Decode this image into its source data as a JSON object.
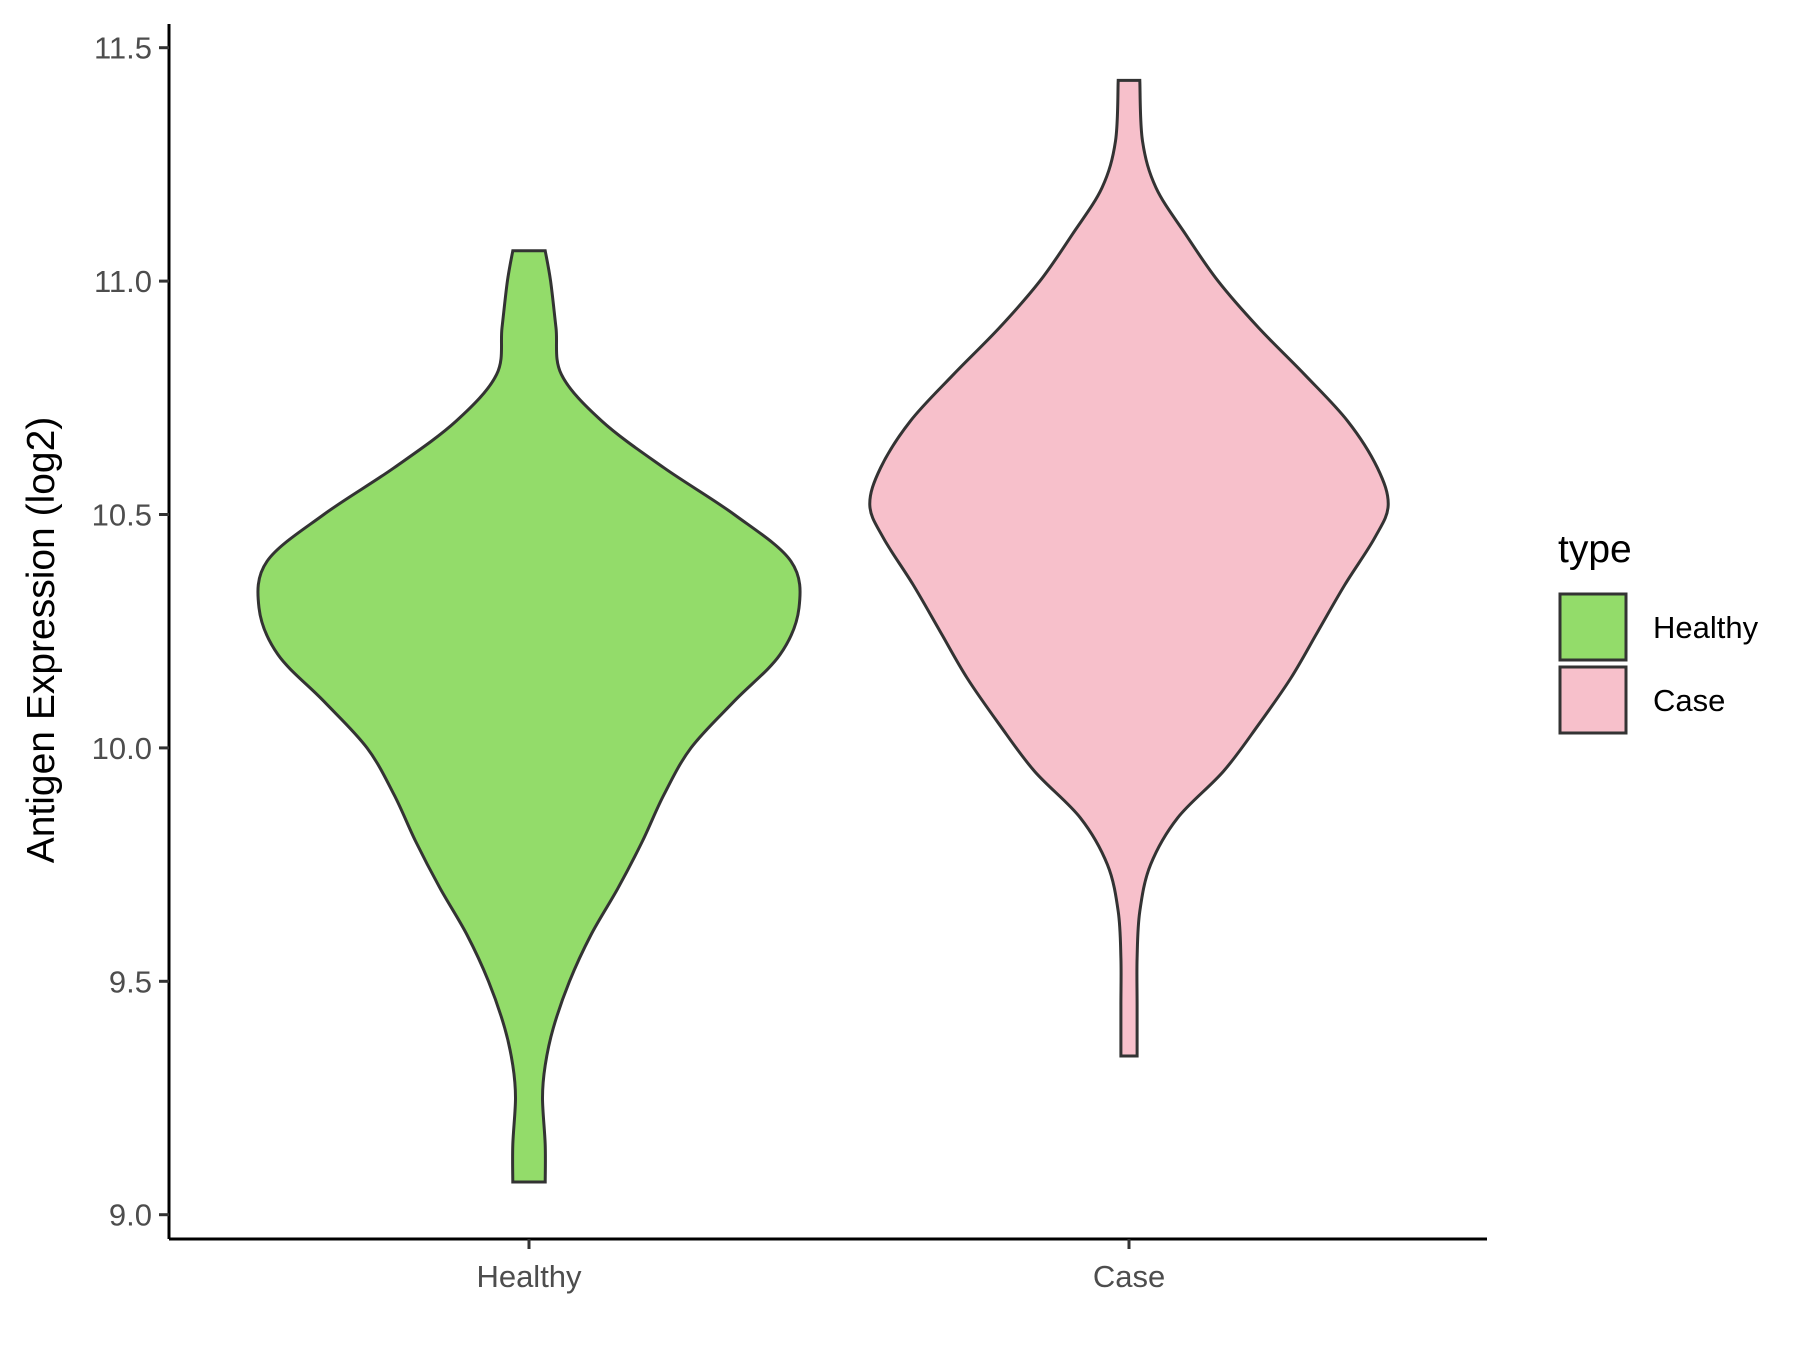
{
  "chart_data": {
    "type": "violin",
    "title": "",
    "xlabel": "",
    "ylabel": "Antigen Expression (log2)",
    "categories": [
      "Healthy",
      "Case"
    ],
    "ylim": [
      8.97,
      11.55
    ],
    "yticks": [
      9.0,
      9.5,
      10.0,
      10.5,
      11.0,
      11.5
    ],
    "ytick_labels": [
      "9.0",
      "9.5",
      "10.0",
      "10.5",
      "11.0",
      "11.5"
    ],
    "grid": false,
    "legend": {
      "title": "type",
      "placement": "right",
      "entries": [
        {
          "label": "Healthy",
          "color": "#93DC6A"
        },
        {
          "label": "Case",
          "color": "#F7C0CB"
        }
      ]
    },
    "series": [
      {
        "name": "Healthy",
        "color": "#93DC6A",
        "min": 9.07,
        "max": 11.065,
        "density_profile": [
          [
            9.07,
            0.06
          ],
          [
            9.15,
            0.06
          ],
          [
            9.25,
            0.05
          ],
          [
            9.32,
            0.06
          ],
          [
            9.4,
            0.09
          ],
          [
            9.5,
            0.15
          ],
          [
            9.6,
            0.23
          ],
          [
            9.7,
            0.33
          ],
          [
            9.8,
            0.42
          ],
          [
            9.9,
            0.5
          ],
          [
            10.0,
            0.6
          ],
          [
            10.1,
            0.76
          ],
          [
            10.2,
            0.93
          ],
          [
            10.3,
            1.0
          ],
          [
            10.4,
            0.97
          ],
          [
            10.5,
            0.76
          ],
          [
            10.6,
            0.5
          ],
          [
            10.7,
            0.27
          ],
          [
            10.8,
            0.12
          ],
          [
            10.9,
            0.1
          ],
          [
            11.0,
            0.08
          ],
          [
            11.065,
            0.06
          ]
        ]
      },
      {
        "name": "Case",
        "color": "#F7C0CB",
        "min": 9.34,
        "max": 11.43,
        "density_profile": [
          [
            9.34,
            0.03
          ],
          [
            9.45,
            0.03
          ],
          [
            9.55,
            0.03
          ],
          [
            9.65,
            0.04
          ],
          [
            9.75,
            0.08
          ],
          [
            9.85,
            0.18
          ],
          [
            9.95,
            0.35
          ],
          [
            10.05,
            0.48
          ],
          [
            10.15,
            0.6
          ],
          [
            10.25,
            0.7
          ],
          [
            10.35,
            0.8
          ],
          [
            10.45,
            0.91
          ],
          [
            10.52,
            0.96
          ],
          [
            10.6,
            0.92
          ],
          [
            10.7,
            0.81
          ],
          [
            10.8,
            0.65
          ],
          [
            10.9,
            0.48
          ],
          [
            11.0,
            0.33
          ],
          [
            11.1,
            0.21
          ],
          [
            11.2,
            0.1
          ],
          [
            11.3,
            0.05
          ],
          [
            11.43,
            0.04
          ]
        ]
      }
    ]
  }
}
